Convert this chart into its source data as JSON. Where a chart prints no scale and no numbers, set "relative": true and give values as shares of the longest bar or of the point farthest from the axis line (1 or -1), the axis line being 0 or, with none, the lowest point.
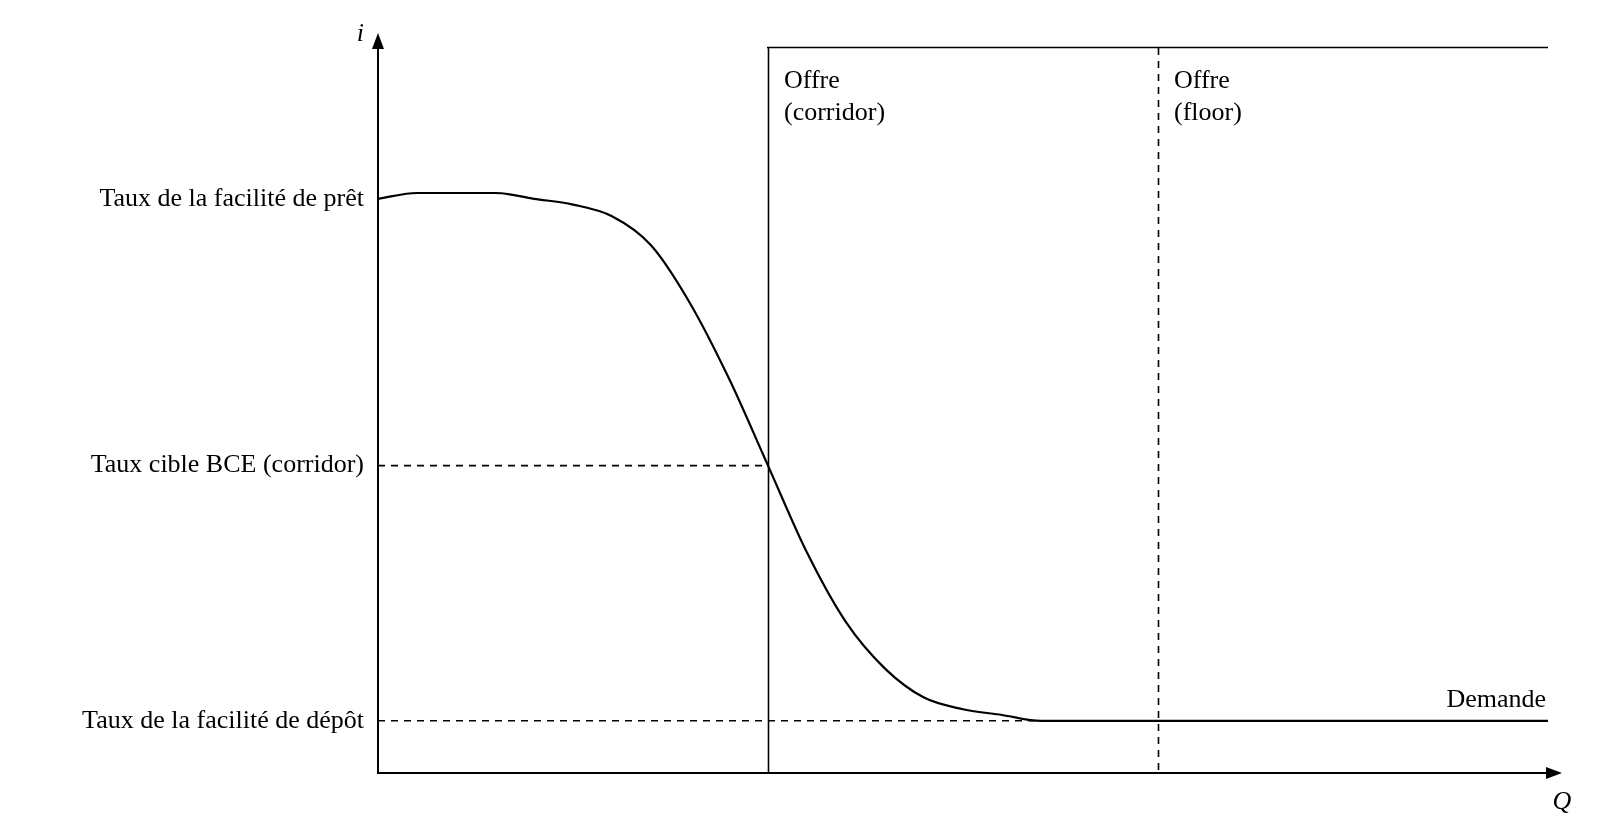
{
  "chart_data": {
    "type": "line",
    "relative": true,
    "xlabel": "Q",
    "categories": [
      null,
      null,
      null,
      null,
      null,
      null,
      null,
      null,
      null,
      null,
      null,
      null,
      null,
      null,
      null,
      null,
      null,
      null,
      null,
      null,
      null,
      null,
      null,
      null,
      null,
      null,
      null,
      null,
      null,
      null,
      null
    ],
    "series": [
      {
        "name": "Demande",
        "color": "#000000",
        "values": [
          0.99,
          1.0,
          1.0,
          1.0,
          0.99,
          0.98,
          0.96,
          0.91,
          0.81,
          0.68,
          0.53,
          0.38,
          0.26,
          0.18,
          0.13,
          0.11,
          0.1,
          0.09,
          0.09,
          0.09,
          0.09,
          0.09,
          0.09,
          0.09,
          0.09,
          0.09,
          0.09,
          0.09,
          0.09,
          0.09,
          0.09
        ]
      }
    ],
    "ref_lines": [
      {
        "axis": "y",
        "value": 0.53,
        "label": "Taux cible BCE (corridor)",
        "color": "#000000",
        "line_style": "dashed"
      },
      {
        "axis": "y",
        "value": 0.09,
        "label": "Taux de la facilité de dépôt",
        "color": "#000000",
        "line_style": "dashed"
      }
    ],
    "annotations": [
      "Taux de la facilité de prêt",
      "Offre (corridor)",
      "Offre (floor)",
      "i"
    ],
    "grid": false,
    "legend": false,
    "marker": "none",
    "line_style": "solid"
  }
}
